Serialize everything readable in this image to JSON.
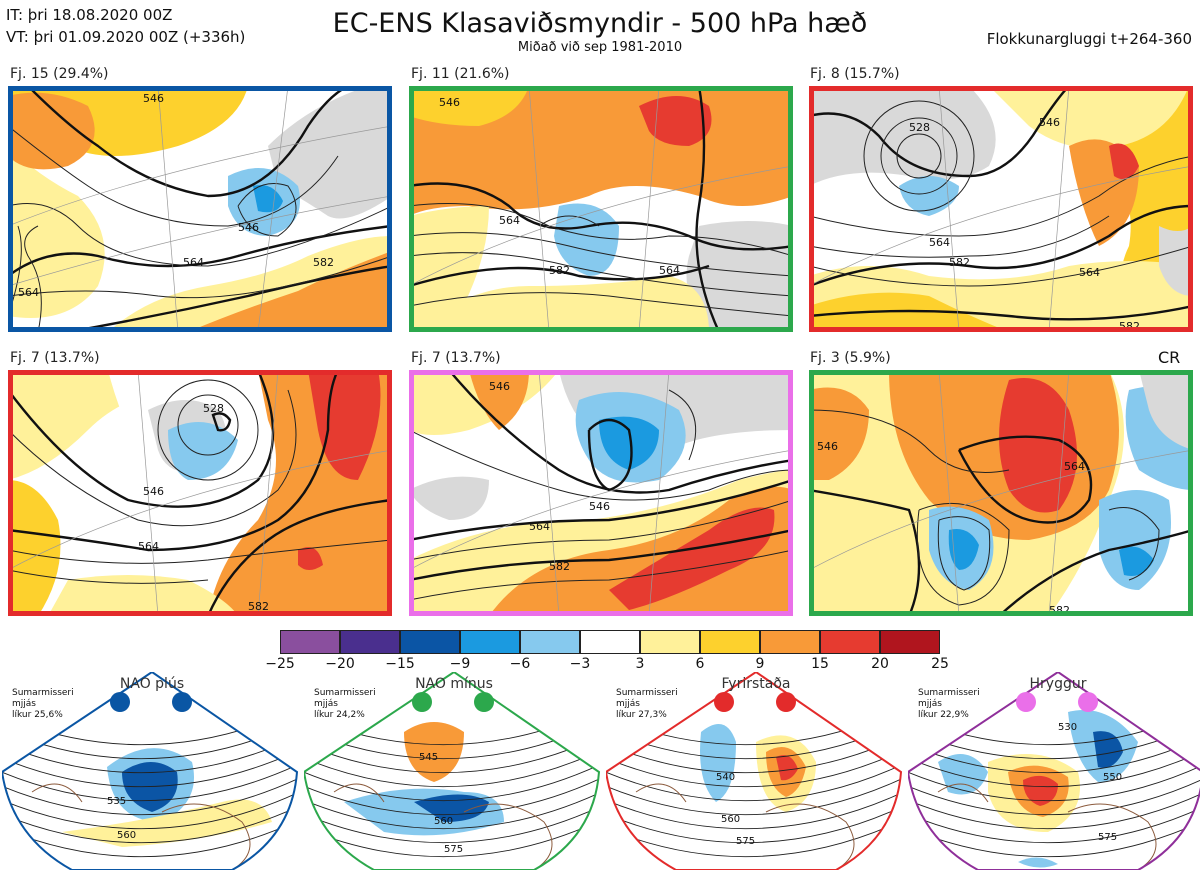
{
  "header": {
    "it": "IT: þri 18.08.2020 00Z",
    "vt": "VT: þri 01.09.2020 00Z  (+336h)",
    "title": "EC-ENS Klasaviðsmyndir - 500 hPa hæð",
    "subtitle": "Miðað við sep 1981-2010",
    "window": "Flokkunargluggi t+264-360"
  },
  "colors": {
    "blue_frame": "#0a56a4",
    "green_frame": "#2ca84c",
    "red_frame": "#e32b2b",
    "magenta_frame": "#ea6fe9",
    "purple_frame": "#8f2f9a",
    "land": "#d9d9d9",
    "coast": "#8b5a3c"
  },
  "panels": [
    {
      "label": "Fj. 15 (29.4%)",
      "frame": "#0a56a4",
      "contours": [
        "546",
        "564",
        "582",
        "564",
        "546"
      ]
    },
    {
      "label": "Fj. 11 (21.6%)",
      "frame": "#2ca84c",
      "contours": [
        "546",
        "564",
        "582",
        "564"
      ]
    },
    {
      "label": "Fj. 8 (15.7%)",
      "frame": "#e32b2b",
      "contours": [
        "528",
        "546",
        "564",
        "582",
        "564",
        "582"
      ]
    },
    {
      "label": "Fj. 7 (13.7%)",
      "frame": "#e32b2b",
      "contours": [
        "528",
        "546",
        "564",
        "582"
      ]
    },
    {
      "label": "Fj. 7 (13.7%)",
      "frame": "#ea6fe9",
      "contours": [
        "546",
        "564",
        "582",
        "546"
      ]
    },
    {
      "label": "Fj. 3 (5.9%)",
      "frame": "#2ca84c",
      "contours": [
        "546",
        "564",
        "582"
      ],
      "tag": "CR"
    }
  ],
  "colorbar": {
    "ticks": [
      "−25",
      "−20",
      "−15",
      "−9",
      "−6",
      "−3",
      "3",
      "6",
      "9",
      "15",
      "20",
      "25"
    ],
    "colors": [
      "#8a4f9e",
      "#4a2f8e",
      "#0b55a5",
      "#1b9ae0",
      "#86c9ee",
      "#ffffff",
      "#fff19a",
      "#fdd12d",
      "#f89a38",
      "#e63b30",
      "#b0151e"
    ]
  },
  "regimes": [
    {
      "name": "NAO plús",
      "note1": "Sumarmisseri",
      "note2": "mjjás",
      "note3": "líkur 25,6%",
      "frame": "#0a56a4",
      "contours": [
        "535",
        "560"
      ]
    },
    {
      "name": "NAO mínus",
      "note1": "Sumarmisseri",
      "note2": "mjjás",
      "note3": "líkur 24,2%",
      "frame": "#2ca84c",
      "contours": [
        "545",
        "560",
        "575"
      ]
    },
    {
      "name": "Fyrirstaða",
      "note1": "Sumarmisseri",
      "note2": "mjjás",
      "note3": "líkur 27,3%",
      "frame": "#e32b2b",
      "contours": [
        "540",
        "560",
        "575"
      ]
    },
    {
      "name": "Hryggur",
      "note1": "Sumarmisseri",
      "note2": "mjjás",
      "note3": "líkur 22,9%",
      "frame": "#8f2f9a",
      "contours": [
        "530",
        "550",
        "575"
      ]
    }
  ]
}
